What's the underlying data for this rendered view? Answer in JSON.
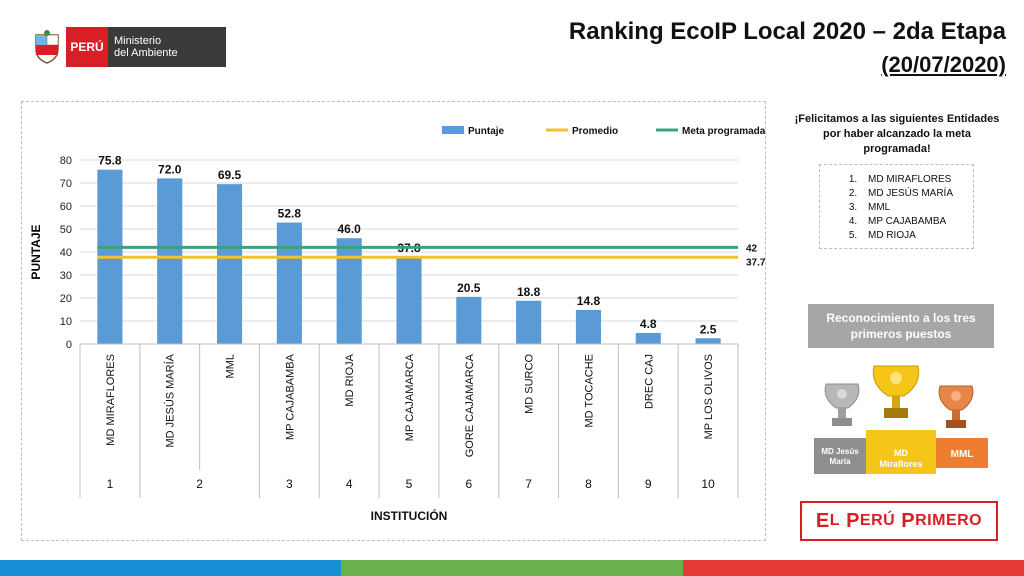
{
  "header": {
    "logo_country": "PERÚ",
    "logo_ministry_line1": "Ministerio",
    "logo_ministry_line2": "del Ambiente",
    "title": "Ranking EcoIP Local 2020 – 2da Etapa",
    "subtitle": "(20/07/2020)"
  },
  "chart_data": {
    "type": "bar",
    "categories": [
      "MD MIRAFLORES",
      "MD JESÚS MARÍA",
      "MML",
      "MP CAJABAMBA",
      "MD RIOJA",
      "MP CAJAMARCA",
      "GORE CAJAMARCA",
      "MD SURCO",
      "MD TOCACHE",
      "DREC CAJ",
      "MP LOS OLIVOS"
    ],
    "ranks": [
      "1",
      "2",
      "3",
      "4",
      "5",
      "6",
      "7",
      "8",
      "9",
      "10"
    ],
    "rank_groups": [
      [
        0,
        0
      ],
      [
        1,
        2
      ],
      [
        3,
        3
      ],
      [
        4,
        4
      ],
      [
        5,
        5
      ],
      [
        6,
        6
      ],
      [
        7,
        7
      ],
      [
        8,
        8
      ],
      [
        9,
        9
      ],
      [
        10,
        10
      ]
    ],
    "series": [
      {
        "name": "Puntaje",
        "values": [
          75.8,
          72.0,
          69.5,
          52.8,
          46.0,
          37.8,
          20.5,
          18.8,
          14.8,
          4.8,
          2.5
        ],
        "color": "#5b9bd5"
      }
    ],
    "value_labels": [
      "75.8",
      "72.0",
      "69.5",
      "52.8",
      "46.0",
      "37.8",
      "20.5",
      "18.8",
      "14.8",
      "4.8",
      "2.5"
    ],
    "reference_lines": [
      {
        "name": "Promedio",
        "value": 37.7,
        "label": "37.7",
        "color": "#f2c12e"
      },
      {
        "name": "Meta programada",
        "value": 42,
        "label": "42",
        "color": "#3aa17e"
      }
    ],
    "legend": [
      "Puntaje",
      "Promedio",
      "Meta programada"
    ],
    "ylim": [
      0,
      80
    ],
    "yticks": [
      "0",
      "10",
      "20",
      "30",
      "40",
      "50",
      "60",
      "70",
      "80"
    ],
    "ylabel": "PUNTAJE",
    "xlabel": "INSTITUCIÓN",
    "legend_position": "top-right",
    "grid": true
  },
  "sidebar": {
    "congrats_text": "¡Felicitamos a las siguientes Entidades por haber alcanzado la meta programada!",
    "winners": [
      "MD MIRAFLORES",
      "MD JESÚS MARÍA",
      "MML",
      "MP CAJABAMBA",
      "MD RIOJA"
    ],
    "recognition_title": "Reconocimiento a los tres primeros puestos",
    "podium": {
      "first": "MD Miraflores",
      "second": "MD Jesús María",
      "third": "MML"
    },
    "slogan_big1": "E",
    "slogan_small1": "L",
    "slogan_big2": "P",
    "slogan_small2": "ERÚ",
    "slogan_big3": "P",
    "slogan_small3": "RIMERO"
  },
  "colors": {
    "brand_red": "#d91f26",
    "bar_bottom": [
      "#1a8fd9",
      "#6ab04c",
      "#e53935"
    ]
  }
}
